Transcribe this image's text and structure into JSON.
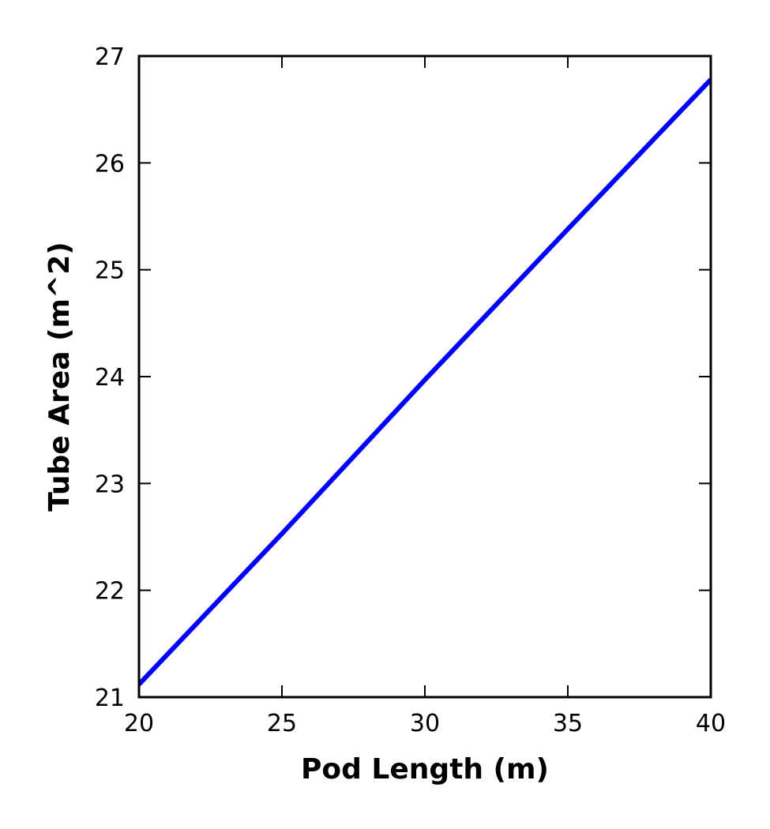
{
  "chart_data": {
    "type": "line",
    "title": "",
    "xlabel": "Pod Length (m)",
    "ylabel": "Tube Area (m^2)",
    "xlim": [
      20,
      40
    ],
    "ylim": [
      21,
      27
    ],
    "xticks": [
      20,
      25,
      30,
      35,
      40
    ],
    "yticks": [
      21,
      22,
      23,
      24,
      25,
      26,
      27
    ],
    "grid": false,
    "legend": "none",
    "series": [
      {
        "color": "#0000ff",
        "x": [
          20,
          25,
          30,
          35,
          40
        ],
        "y": [
          21.12,
          22.53,
          23.97,
          25.38,
          26.78
        ]
      }
    ]
  }
}
